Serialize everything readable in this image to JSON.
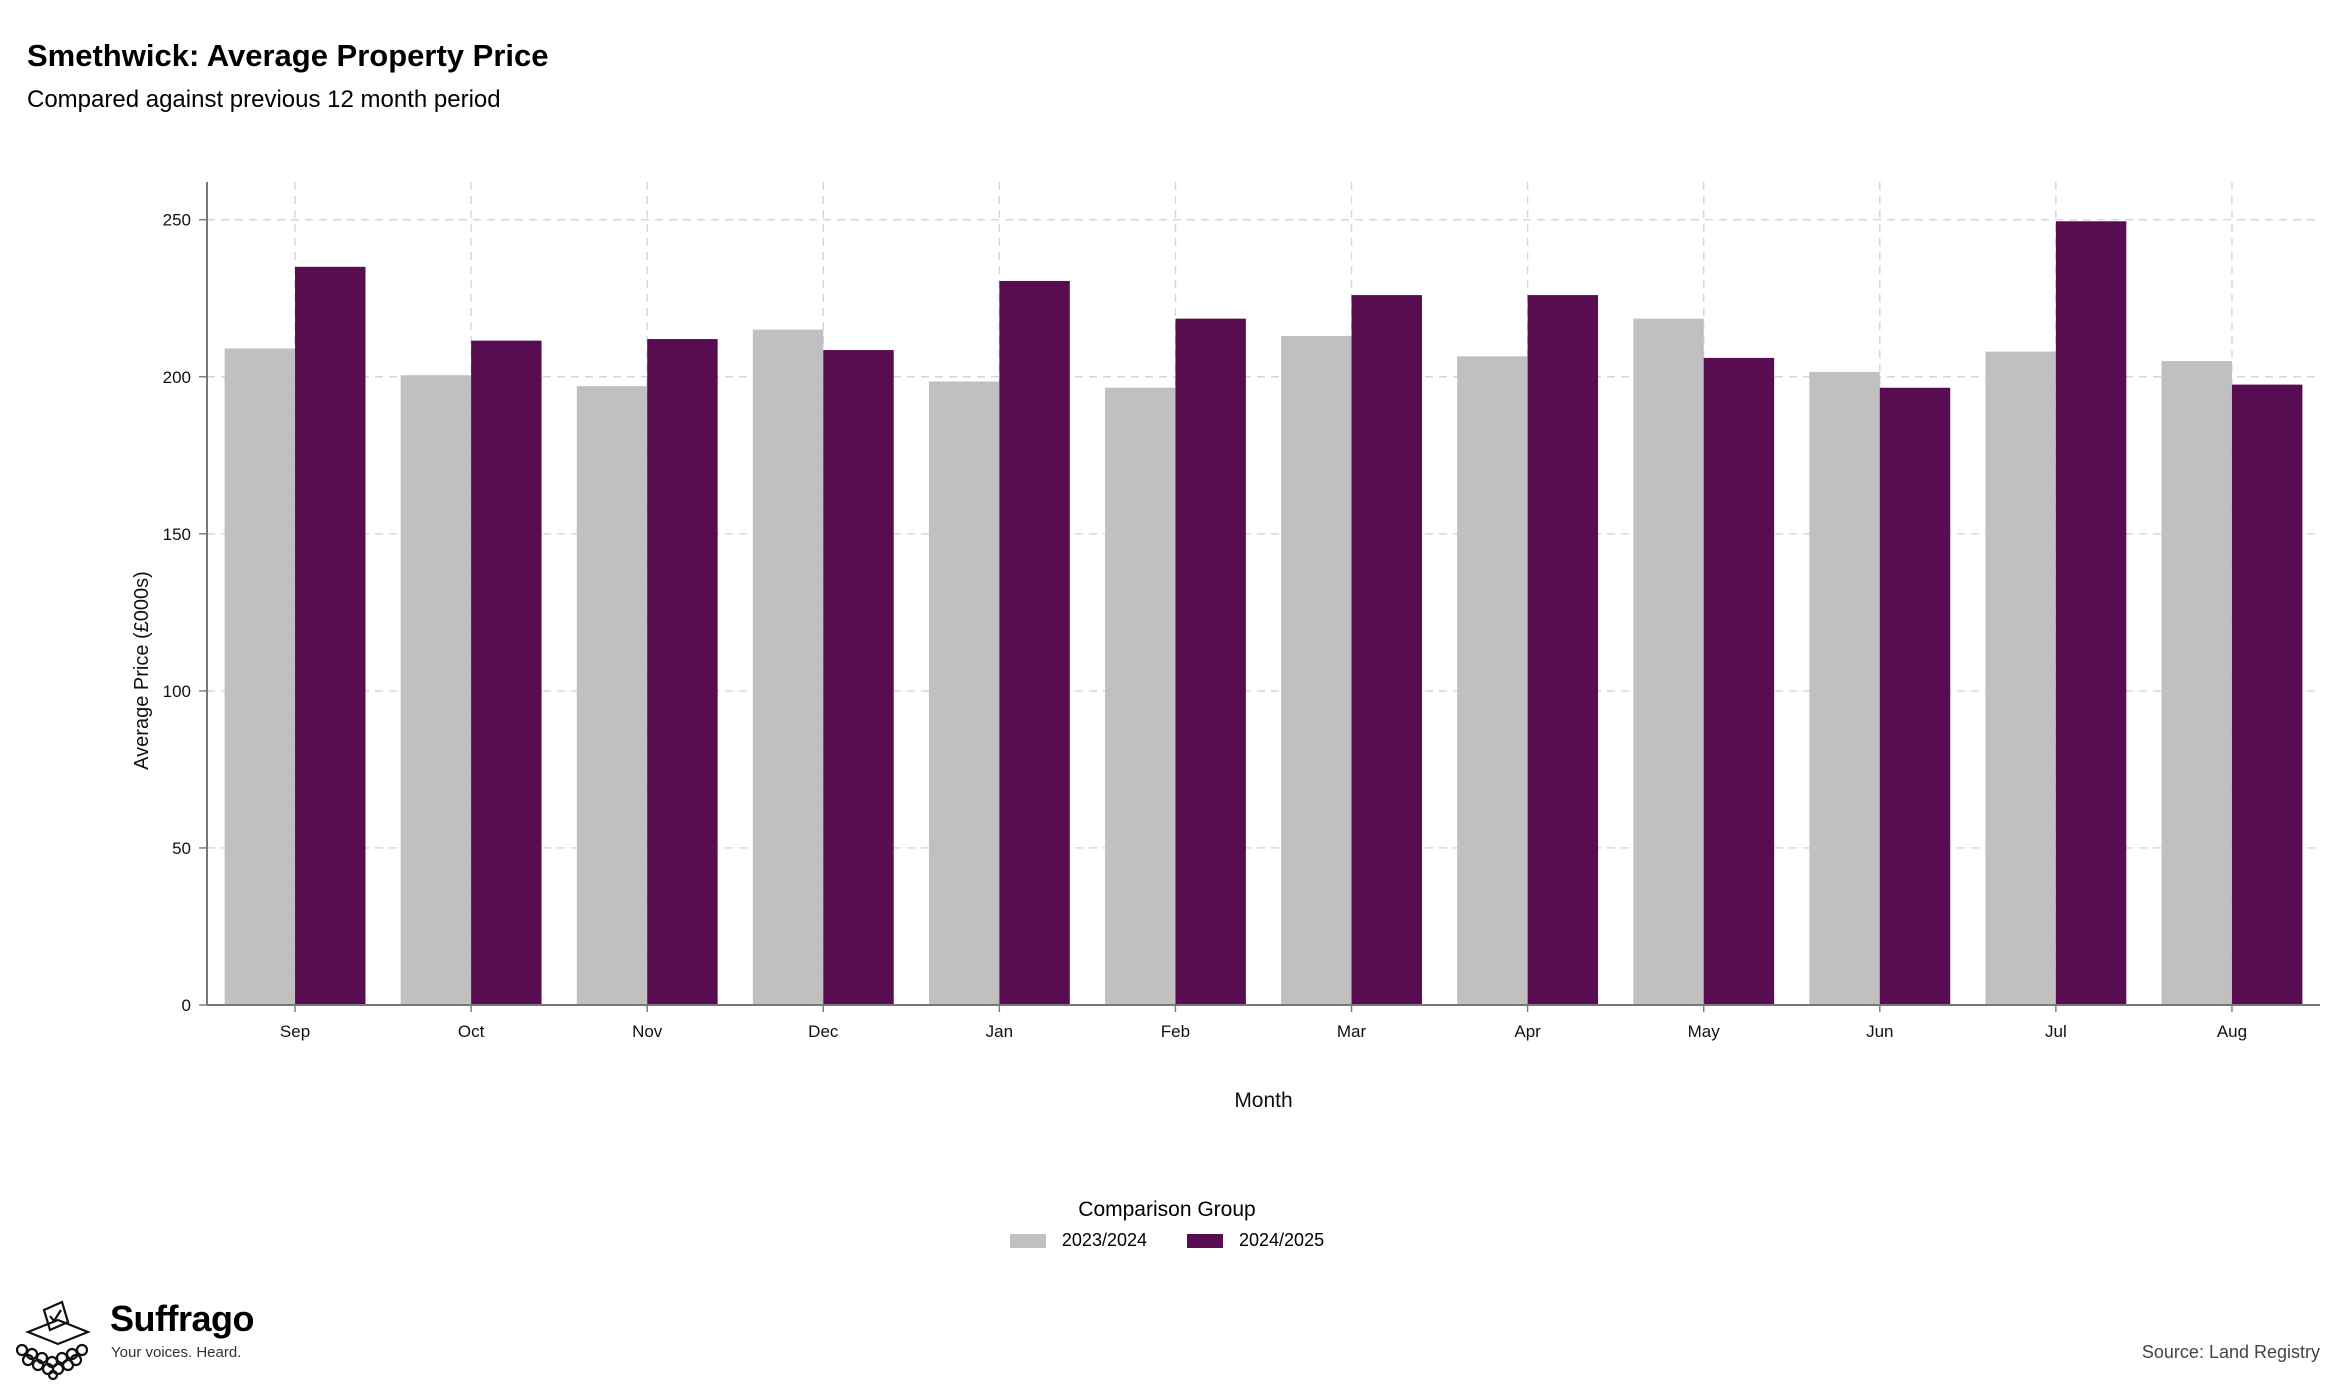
{
  "header": {
    "title": "Smethwick: Average Property Price",
    "subtitle": "Compared against previous 12 month period"
  },
  "legend": {
    "title": "Comparison Group",
    "items": [
      {
        "label": "2023/2024",
        "color": "#c0c0c0"
      },
      {
        "label": "2024/2025",
        "color": "#580c52"
      }
    ]
  },
  "footer": {
    "brand_name": "Suffrago",
    "brand_tagline": "Your voices. Heard.",
    "source": "Source: Land Registry"
  },
  "chart_data": {
    "type": "bar",
    "xlabel": "Month",
    "ylabel": "Average Price (£000s)",
    "ylim": [
      0,
      262
    ],
    "yticks": [
      0,
      50,
      100,
      150,
      200,
      250
    ],
    "grid": true,
    "legend_position": "bottom",
    "categories": [
      "Sep",
      "Oct",
      "Nov",
      "Dec",
      "Jan",
      "Feb",
      "Mar",
      "Apr",
      "May",
      "Jun",
      "Jul",
      "Aug"
    ],
    "series": [
      {
        "name": "2023/2024",
        "color": "#c0c0c0",
        "values": [
          209,
          200.5,
          197,
          215,
          198.5,
          196.5,
          213,
          206.5,
          218.5,
          201.5,
          208,
          205
        ]
      },
      {
        "name": "2024/2025",
        "color": "#580c52",
        "values": [
          235,
          211.5,
          212,
          208.5,
          230.5,
          218.5,
          226,
          226,
          206,
          196.5,
          249.5,
          197.5
        ]
      }
    ]
  }
}
